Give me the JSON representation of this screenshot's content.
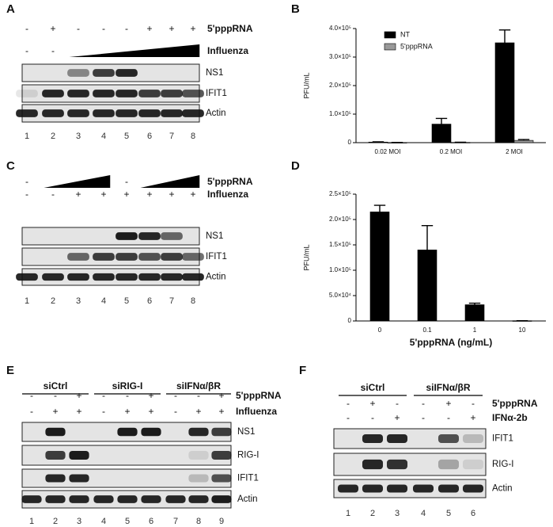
{
  "panel_labels": [
    "A",
    "B",
    "C",
    "D",
    "E",
    "F"
  ],
  "blots": [
    {
      "treatments": [
        {
          "name": "5'pppRNA",
          "signs": [
            "-",
            "+",
            "-",
            "-",
            "-",
            "+",
            "+",
            "+"
          ]
        },
        {
          "name": "Influenza",
          "signs": [
            "-",
            "-",
            null,
            null,
            null,
            null,
            null,
            null
          ]
        }
      ],
      "bands": [
        "NS1",
        "IFIT1",
        "Actin"
      ],
      "lanes": [
        "1",
        "2",
        "3",
        "4",
        "5",
        "6",
        "7",
        "8"
      ]
    },
    {
      "treatments": [
        {
          "name": "5'pppRNA",
          "signs": [
            "-",
            null,
            null,
            null,
            "-",
            null,
            null,
            null
          ]
        },
        {
          "name": "Influenza",
          "signs": [
            "-",
            "-",
            "+",
            "+",
            "+",
            "+",
            "+",
            "+"
          ]
        }
      ],
      "bands": [
        "NS1",
        "IFIT1",
        "Actin"
      ],
      "lanes": [
        "1",
        "2",
        "3",
        "4",
        "5",
        "6",
        "7",
        "8"
      ]
    },
    {
      "groups": [
        "siCtrl",
        "siRIG-I",
        "siIFNα/βR"
      ],
      "treatments": [
        {
          "name": "5'pppRNA",
          "signs": [
            "-",
            "-",
            "+",
            "-",
            "-",
            "+",
            "-",
            "-",
            "+"
          ]
        },
        {
          "name": "Influenza",
          "signs": [
            "-",
            "+",
            "+",
            "-",
            "+",
            "+",
            "-",
            "+",
            "+"
          ]
        }
      ],
      "bands": [
        "NS1",
        "RIG-I",
        "IFIT1",
        "Actin"
      ],
      "lanes": [
        "1",
        "2",
        "3",
        "4",
        "5",
        "6",
        "7",
        "8",
        "9"
      ]
    },
    {
      "groups": [
        "siCtrl",
        "siIFNα/βR"
      ],
      "treatments": [
        {
          "name": "5'pppRNA",
          "signs": [
            "-",
            "+",
            "-",
            "-",
            "+",
            "-"
          ]
        },
        {
          "name": "IFNα-2b",
          "signs": [
            "-",
            "-",
            "+",
            "-",
            "-",
            "+"
          ]
        }
      ],
      "bands": [
        "IFIT1",
        "RIG-I",
        "Actin"
      ],
      "lanes": [
        "1",
        "2",
        "3",
        "4",
        "5",
        "6"
      ]
    }
  ],
  "chart_data": [
    {
      "type": "bar",
      "ylabel": "PFU/mL",
      "categories": [
        "0.02 MOI",
        "0.2 MOI",
        "2 MOI"
      ],
      "series": [
        {
          "name": "NT",
          "color": "#000000",
          "values": [
            2000,
            65000,
            350000
          ],
          "errors": [
            1000,
            20000,
            45000
          ]
        },
        {
          "name": "5'pppRNA",
          "color": "#999999",
          "values": [
            500,
            1000,
            8000
          ],
          "errors": [
            300,
            500,
            3000
          ]
        }
      ],
      "ylim": [
        0,
        400000
      ],
      "yticks": [
        0,
        {
          "value": 100000,
          "label": "1.0×10⁵"
        },
        {
          "value": 200000,
          "label": "2.0×10⁵"
        },
        {
          "value": 300000,
          "label": "3.0×10⁵"
        },
        {
          "value": 400000,
          "label": "4.0×10⁵"
        }
      ],
      "legend": "upper-left"
    },
    {
      "type": "bar",
      "ylabel": "PFU/mL",
      "xlabel": "5'pppRNA (ng/mL)",
      "categories": [
        "0",
        "0.1",
        "1",
        "10"
      ],
      "series": [
        {
          "color": "#000000",
          "values": [
            215000,
            140000,
            32000,
            500
          ],
          "errors": [
            13000,
            48000,
            3000,
            0
          ]
        }
      ],
      "ylim": [
        0,
        250000
      ],
      "yticks": [
        0,
        {
          "value": 50000,
          "label": "5.0×10⁴"
        },
        {
          "value": 100000,
          "label": "1.0×10⁵"
        },
        {
          "value": 150000,
          "label": "1.5×10⁵"
        },
        {
          "value": 200000,
          "label": "2.0×10⁵"
        },
        {
          "value": 250000,
          "label": "2.5×10⁵"
        }
      ]
    }
  ]
}
